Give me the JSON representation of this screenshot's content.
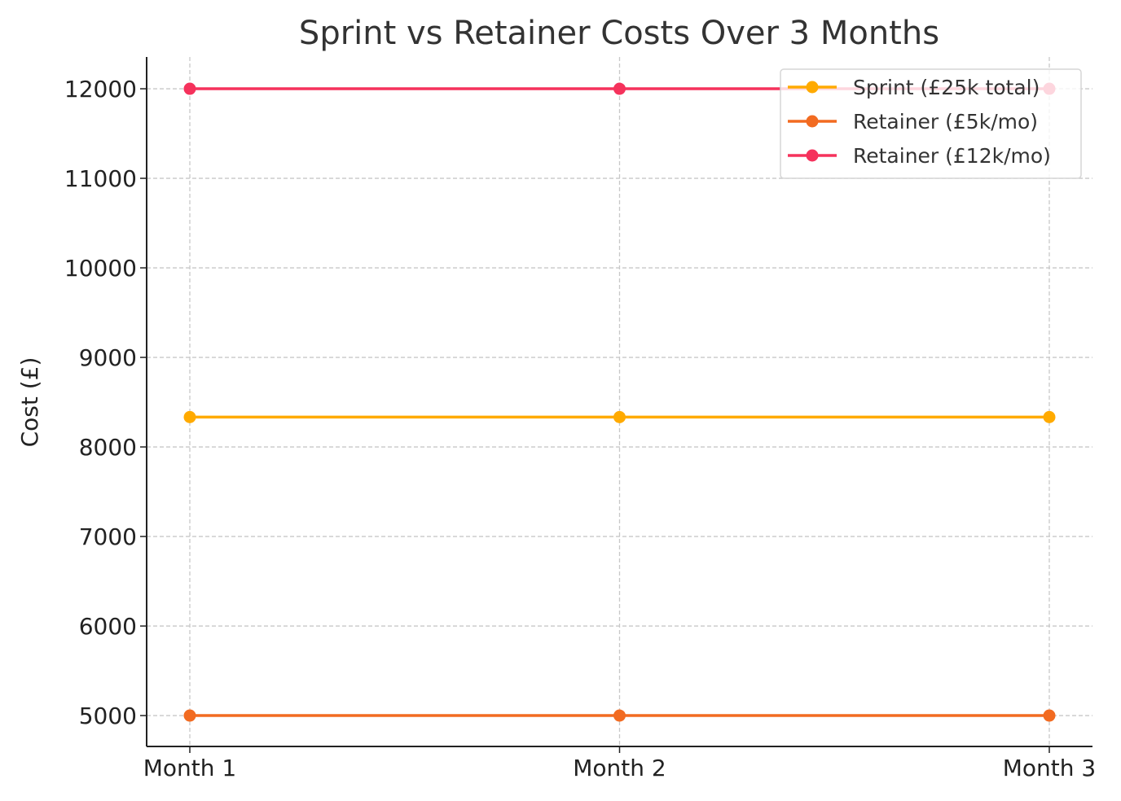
{
  "chart_data": {
    "type": "line",
    "title": "Sprint vs Retainer Costs Over 3 Months",
    "xlabel": "",
    "ylabel": "Cost (£)",
    "categories": [
      "Month 1",
      "Month 2",
      "Month 3"
    ],
    "ylim": [
      4655,
      12355
    ],
    "yticks": [
      5000,
      6000,
      7000,
      8000,
      9000,
      10000,
      11000,
      12000
    ],
    "grid": true,
    "legend_position": "top-right",
    "series": [
      {
        "name": "Sprint (£25k total)",
        "values": [
          8333.33,
          8333.33,
          8333.33
        ],
        "color": "#FFAA00"
      },
      {
        "name": "Retainer (£5k/mo)",
        "values": [
          5000,
          5000,
          5000
        ],
        "color": "#F26B21"
      },
      {
        "name": "Retainer (£12k/mo)",
        "values": [
          12000,
          12000,
          12000
        ],
        "color": "#F5325C"
      }
    ]
  }
}
